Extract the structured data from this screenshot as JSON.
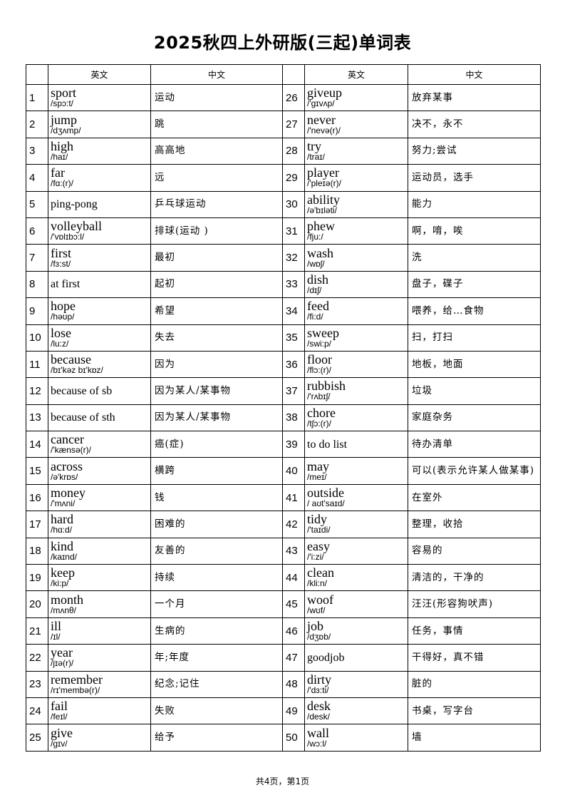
{
  "title": "2025秋四上外研版(三起)单词表",
  "headers": {
    "no": "",
    "en": "英文",
    "cn": "中文"
  },
  "words": [
    {
      "no": "1",
      "en": "sport",
      "ipa": "/spɔ:t/",
      "cn": "运动"
    },
    {
      "no": "2",
      "en": "jump",
      "ipa": "/dʒʌmp/",
      "cn": "跳"
    },
    {
      "no": "3",
      "en": "high",
      "ipa": "/haɪ/",
      "cn": "高高地"
    },
    {
      "no": "4",
      "en": "far",
      "ipa": "/fɑ:(r)/",
      "cn": "远"
    },
    {
      "no": "5",
      "en": "ping-pong",
      "ipa": "",
      "cn": "乒乓球运动"
    },
    {
      "no": "6",
      "en": "volleyball",
      "ipa": "/'vɒlɪbɔ:l/",
      "cn": "排球(运动 )"
    },
    {
      "no": "7",
      "en": "first",
      "ipa": "/fɜ:st/",
      "cn": "最初"
    },
    {
      "no": "8",
      "en": "at first",
      "ipa": "",
      "cn": "起初"
    },
    {
      "no": "9",
      "en": "hope",
      "ipa": "/həʊp/",
      "cn": "希望"
    },
    {
      "no": "10",
      "en": "lose",
      "ipa": "/lu:z/",
      "cn": "失去"
    },
    {
      "no": "11",
      "en": "because",
      "ipa": "/bɪ'kəz bɪ'kɒz/",
      "cn": "因为"
    },
    {
      "no": "12",
      "en": "because of sb",
      "ipa": "",
      "cn": "因为某人/某事物"
    },
    {
      "no": "13",
      "en": "because of sth",
      "ipa": "",
      "cn": "因为某人/某事物"
    },
    {
      "no": "14",
      "en": "cancer",
      "ipa": "/'kænsə(r)/",
      "cn": "癌(症)"
    },
    {
      "no": "15",
      "en": "across",
      "ipa": "/ə'krɒs/",
      "cn": "横跨"
    },
    {
      "no": "16",
      "en": "money",
      "ipa": "/'mʌni/",
      "cn": "钱"
    },
    {
      "no": "17",
      "en": "hard",
      "ipa": "/hɑ:d/",
      "cn": "困难的"
    },
    {
      "no": "18",
      "en": "kind",
      "ipa": "/kaɪnd/",
      "cn": "友善的"
    },
    {
      "no": "19",
      "en": "keep",
      "ipa": "/ki:p/",
      "cn": "持续"
    },
    {
      "no": "20",
      "en": "month",
      "ipa": "/mʌnθ/",
      "cn": "一个月"
    },
    {
      "no": "21",
      "en": "ill",
      "ipa": "/ɪl/",
      "cn": "生病的"
    },
    {
      "no": "22",
      "en": "year",
      "ipa": "/jɪə(r)/",
      "cn": "年;年度"
    },
    {
      "no": "23",
      "en": "remember",
      "ipa": "/rɪ'membə(r)/",
      "cn": "纪念;记住"
    },
    {
      "no": "24",
      "en": "fail",
      "ipa": "/feɪl/",
      "cn": "失败"
    },
    {
      "no": "25",
      "en": "give",
      "ipa": "/gɪv/",
      "cn": "给予"
    },
    {
      "no": "26",
      "en": "giveup",
      "ipa": "/'gɪvʌp/",
      "cn": "放弃某事"
    },
    {
      "no": "27",
      "en": "never",
      "ipa": "/'nevə(r)/",
      "cn": "决不，永不"
    },
    {
      "no": "28",
      "en": "try",
      "ipa": "/traɪ/",
      "cn": "努力;尝试"
    },
    {
      "no": "29",
      "en": "player",
      "ipa": "/'pleɪə(r)/",
      "cn": "运动员，选手"
    },
    {
      "no": "30",
      "en": "ability",
      "ipa": "/ə'bɪləti/",
      "cn": "能力"
    },
    {
      "no": "31",
      "en": "phew",
      "ipa": "/fju:/",
      "cn": "啊，唷，唉"
    },
    {
      "no": "32",
      "en": "wash",
      "ipa": "/wɒʃ/",
      "cn": "洗"
    },
    {
      "no": "33",
      "en": "dish",
      "ipa": "/dɪʃ/",
      "cn": "盘子，碟子"
    },
    {
      "no": "34",
      "en": "feed",
      "ipa": "/fi:d/",
      "cn": "喂养，给…食物"
    },
    {
      "no": "35",
      "en": "sweep",
      "ipa": "/swi:p/",
      "cn": "扫，打扫"
    },
    {
      "no": "36",
      "en": "floor",
      "ipa": "/flɔ:(r)/",
      "cn": "地板，地面"
    },
    {
      "no": "37",
      "en": "rubbish",
      "ipa": "/'rʌbɪʃ/",
      "cn": "垃圾"
    },
    {
      "no": "38",
      "en": "chore",
      "ipa": "/tʃɔ:(r)/",
      "cn": "家庭杂务"
    },
    {
      "no": "39",
      "en": "to do list",
      "ipa": "",
      "cn": "待办清单"
    },
    {
      "no": "40",
      "en": "may",
      "ipa": "/meɪ/",
      "cn": "可以(表示允许某人做某事)"
    },
    {
      "no": "41",
      "en": "outside",
      "ipa": "/ aʊt'saɪd/",
      "cn": "在室外"
    },
    {
      "no": "42",
      "en": "tidy",
      "ipa": "/'taɪdi/",
      "cn": "整理，收拾"
    },
    {
      "no": "43",
      "en": "easy",
      "ipa": "/'i:zi/",
      "cn": "容易的"
    },
    {
      "no": "44",
      "en": "clean",
      "ipa": "/kli:n/",
      "cn": "清洁的，干净的"
    },
    {
      "no": "45",
      "en": "woof",
      "ipa": "/wʊf/",
      "cn": "汪汪(形容狗吠声)"
    },
    {
      "no": "46",
      "en": "job",
      "ipa": "/dʒɒb/",
      "cn": "任务，事情"
    },
    {
      "no": "47",
      "en": "goodjob",
      "ipa": "",
      "cn": "干得好，真不错"
    },
    {
      "no": "48",
      "en": "dirty",
      "ipa": "/'dɜ:ti/",
      "cn": "脏的"
    },
    {
      "no": "49",
      "en": "desk",
      "ipa": "/desk/",
      "cn": "书桌，写字台"
    },
    {
      "no": "50",
      "en": "wall",
      "ipa": "/wɔ:l/",
      "cn": "墙"
    }
  ],
  "footer": "共4页，第1页"
}
